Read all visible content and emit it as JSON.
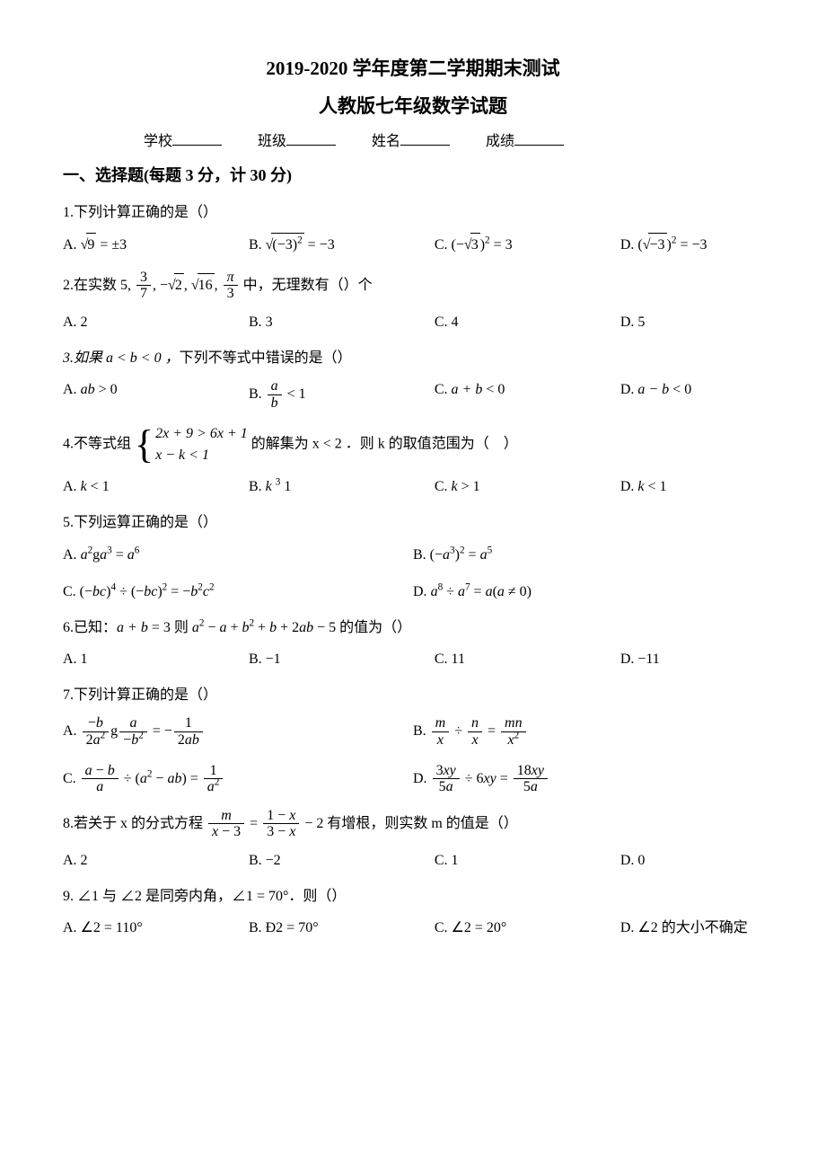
{
  "title1": "2019-2020 学年度第二学期期末测试",
  "title2": "人教版七年级数学试题",
  "info": {
    "school": "学校",
    "class": "班级",
    "name": "姓名",
    "score": "成绩"
  },
  "section1": "一、选择题(每题 3 分，计 30 分)",
  "q1": {
    "stem": "1.下列计算正确的是（）"
  },
  "q2": {
    "stem_prefix": "2.在实数",
    "stem_suffix": "中，无理数有（）个",
    "A": "A. 2",
    "B": "B. 3",
    "C": "C. 4",
    "D": "D. 5"
  },
  "q3": {
    "stem": "3.如果 a < b < 0 ，下列不等式中错误的是（）"
  },
  "q4": {
    "stem_prefix": "4.不等式组",
    "stem_mid": "的解集为 x < 2 ．则 k 的取值范围为（　）"
  },
  "q5": {
    "stem": "5.下列运算正确的是（）"
  },
  "q6": {
    "stem": "6.已知：a + b = 3 则 a² − a + b² + b + 2ab − 5 的值为（）",
    "A": "A. 1",
    "B": "B. −1",
    "C": "C. 11",
    "D": "D. −11"
  },
  "q7": {
    "stem": "7.下列计算正确的是（）"
  },
  "q8": {
    "stem_prefix": "8.若关于 x 的分式方程",
    "stem_suffix": "有增根，则实数 m 的值是（）",
    "A": "A. 2",
    "B": "B. −2",
    "C": "C. 1",
    "D": "D. 0"
  },
  "q9": {
    "stem": "9. ∠1 与 ∠2 是同旁内角，∠1 = 70°．则（）",
    "A": "A. ∠2 = 110°",
    "B": "B. Ð2 = 70°",
    "C": "C. ∠2 = 20°",
    "D": "D. ∠2 的大小不确定"
  },
  "labels": {
    "A": "A. ",
    "B": "B. ",
    "C": "C. ",
    "D": "D. "
  }
}
